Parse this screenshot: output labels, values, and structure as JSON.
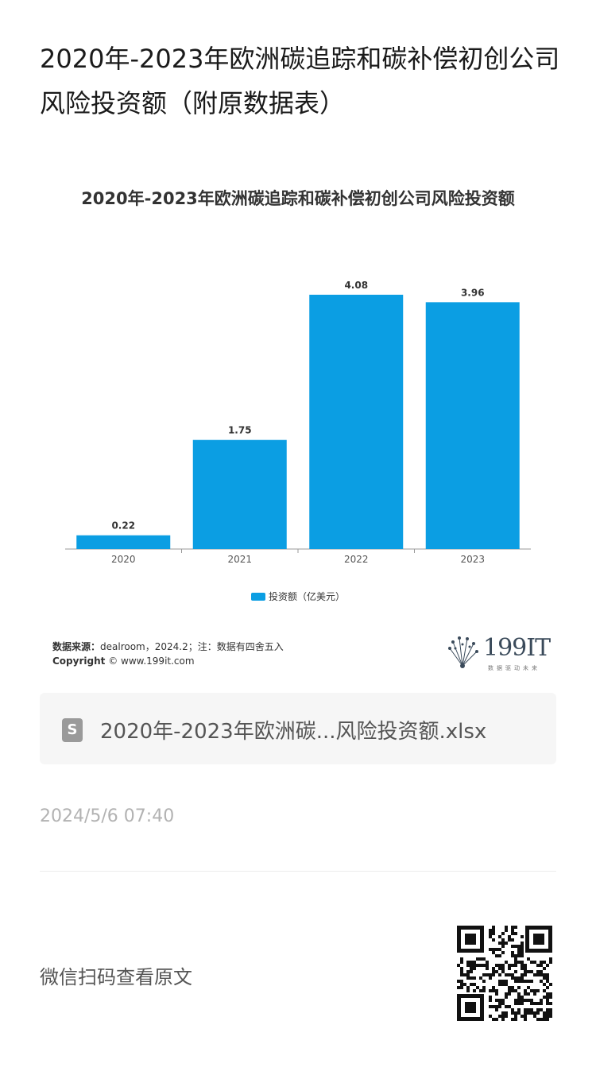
{
  "article": {
    "title": "2020年-2023年欧洲碳追踪和碳补偿初创公司风险投资额（附原数据表）"
  },
  "chart_data": {
    "type": "bar",
    "title": "2020年-2023年欧洲碳追踪和碳补偿初创公司风险投资额",
    "categories": [
      "2020",
      "2021",
      "2022",
      "2023"
    ],
    "series": [
      {
        "name": "投资额（亿美元）",
        "values": [
          0.22,
          1.75,
          4.08,
          3.96
        ],
        "color": "#0b9ee3"
      }
    ],
    "ylim": [
      0,
      4.5
    ],
    "grid": false,
    "legend_position": "bottom",
    "data_labels": true
  },
  "chart_footer": {
    "source_key": "数据来源：",
    "source_value": "dealroom，2024.2；注：数据有四舍五入",
    "copyright_key": "Copyright",
    "copyright_value": " © www.199it.com"
  },
  "brand": {
    "logo_text": "199IT",
    "tagline": "数据驱动未来"
  },
  "attachment": {
    "file_name": "2020年-2023年欧洲碳...风险投资额.xlsx",
    "icon": "spreadsheet-file-icon",
    "icon_glyph": "S"
  },
  "meta": {
    "timestamp": "2024/5/6 07:40",
    "qr_label": "微信扫码查看原文"
  }
}
